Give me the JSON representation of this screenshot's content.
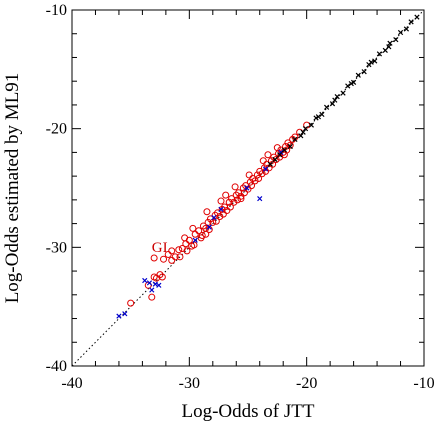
{
  "chart_data": {
    "type": "scatter",
    "xlabel": "Log-Odds of JTT",
    "ylabel": "Log-Odds estimated by ML91",
    "xlim": [
      -40,
      -10
    ],
    "ylim": [
      -40,
      -10
    ],
    "x_ticks": [
      -40,
      -30,
      -20,
      -10
    ],
    "y_ticks": [
      -40,
      -30,
      -20,
      -10
    ],
    "x_tick_labels": [
      "-40",
      "-30",
      "-20",
      "-10"
    ],
    "y_tick_labels": [
      "-40",
      "-30",
      "-20",
      "-10"
    ],
    "grid": false,
    "reference_line": {
      "style": "dotted",
      "from": [
        -40,
        -40
      ],
      "to": [
        -10,
        -10
      ],
      "color": "#000000"
    },
    "annotations": [
      {
        "text": "GI",
        "x": -33.2,
        "y": -30.4,
        "color": "#cc0000"
      }
    ],
    "series": [
      {
        "marker": "circle",
        "color": "#e00000",
        "points": [
          [
            -35.0,
            -34.7
          ],
          [
            -33.5,
            -33.2
          ],
          [
            -33.2,
            -34.2
          ],
          [
            -33.0,
            -32.5
          ],
          [
            -32.8,
            -32.6
          ],
          [
            -32.5,
            -32.3
          ],
          [
            -32.3,
            -32.5
          ],
          [
            -33.0,
            -30.9
          ],
          [
            -32.2,
            -31.0
          ],
          [
            -31.8,
            -30.6
          ],
          [
            -31.5,
            -30.3
          ],
          [
            -31.2,
            -30.8
          ],
          [
            -30.9,
            -30.2
          ],
          [
            -30.6,
            -30.1
          ],
          [
            -30.3,
            -29.7
          ],
          [
            -30.0,
            -29.4
          ],
          [
            -29.8,
            -29.9
          ],
          [
            -29.5,
            -28.9
          ],
          [
            -29.2,
            -28.6
          ],
          [
            -29.0,
            -29.2
          ],
          [
            -28.8,
            -28.2
          ],
          [
            -28.6,
            -28.4
          ],
          [
            -28.4,
            -27.9
          ],
          [
            -28.2,
            -27.6
          ],
          [
            -28.0,
            -27.9
          ],
          [
            -27.8,
            -27.3
          ],
          [
            -27.6,
            -27.1
          ],
          [
            -27.4,
            -27.4
          ],
          [
            -27.2,
            -26.8
          ],
          [
            -27.0,
            -26.6
          ],
          [
            -26.8,
            -26.9
          ],
          [
            -26.6,
            -26.2
          ],
          [
            -26.4,
            -25.9
          ],
          [
            -26.2,
            -26.2
          ],
          [
            -26.0,
            -25.6
          ],
          [
            -25.8,
            -25.4
          ],
          [
            -25.6,
            -25.7
          ],
          [
            -25.4,
            -25.0
          ],
          [
            -25.2,
            -24.8
          ],
          [
            -25.0,
            -25.1
          ],
          [
            -24.8,
            -24.5
          ],
          [
            -24.6,
            -24.2
          ],
          [
            -24.4,
            -24.4
          ],
          [
            -24.2,
            -23.9
          ],
          [
            -24.0,
            -23.6
          ],
          [
            -23.8,
            -23.8
          ],
          [
            -23.6,
            -23.3
          ],
          [
            -23.4,
            -23.0
          ],
          [
            -23.2,
            -23.3
          ],
          [
            -23.0,
            -22.7
          ],
          [
            -22.8,
            -22.4
          ],
          [
            -22.6,
            -22.6
          ],
          [
            -22.4,
            -22.1
          ],
          [
            -22.2,
            -21.8
          ],
          [
            -22.0,
            -22.0
          ],
          [
            -21.8,
            -21.5
          ],
          [
            -21.6,
            -21.2
          ],
          [
            -21.4,
            -21.4
          ],
          [
            -21.2,
            -20.9
          ],
          [
            -21.0,
            -20.7
          ],
          [
            -20.6,
            -20.3
          ],
          [
            -20.0,
            -19.7
          ],
          [
            -31.5,
            -31.1
          ],
          [
            -30.8,
            -30.8
          ],
          [
            -30.2,
            -30.3
          ],
          [
            -29.6,
            -29.8
          ],
          [
            -28.9,
            -29.0
          ],
          [
            -28.3,
            -28.5
          ],
          [
            -27.7,
            -27.8
          ],
          [
            -27.1,
            -27.2
          ],
          [
            -26.5,
            -26.6
          ],
          [
            -25.9,
            -26.0
          ],
          [
            -25.3,
            -25.4
          ],
          [
            -24.7,
            -24.8
          ],
          [
            -24.1,
            -24.2
          ],
          [
            -23.5,
            -23.6
          ],
          [
            -22.9,
            -23.0
          ],
          [
            -22.3,
            -22.4
          ],
          [
            -21.7,
            -21.8
          ],
          [
            -29.7,
            -28.4
          ],
          [
            -28.5,
            -27.0
          ],
          [
            -27.3,
            -26.1
          ],
          [
            -26.1,
            -24.9
          ],
          [
            -24.9,
            -23.9
          ],
          [
            -23.7,
            -22.7
          ],
          [
            -22.5,
            -21.6
          ],
          [
            -30.4,
            -29.2
          ],
          [
            -26.9,
            -25.6
          ],
          [
            -23.3,
            -22.2
          ],
          [
            -28.6,
            -28.9
          ],
          [
            -25.6,
            -25.9
          ],
          [
            -21.9,
            -22.2
          ]
        ]
      },
      {
        "marker": "x",
        "color": "#0000cc",
        "points": [
          [
            -36.0,
            -35.8
          ],
          [
            -35.5,
            -35.6
          ],
          [
            -33.8,
            -32.8
          ],
          [
            -33.4,
            -33.0
          ],
          [
            -32.9,
            -33.1
          ],
          [
            -32.6,
            -33.2
          ],
          [
            -29.5,
            -29.4
          ],
          [
            -28.3,
            -28.3
          ],
          [
            -27.9,
            -27.5
          ],
          [
            -27.3,
            -26.8
          ],
          [
            -25.1,
            -25.0
          ],
          [
            -24.0,
            -25.9
          ],
          [
            -23.5,
            -23.4
          ],
          [
            -22.2,
            -22.0
          ],
          [
            -33.2,
            -33.6
          ]
        ]
      },
      {
        "marker": "x",
        "color": "#000000",
        "points": [
          [
            -10.6,
            -10.6
          ],
          [
            -11.1,
            -11.0
          ],
          [
            -11.5,
            -11.6
          ],
          [
            -12.0,
            -11.9
          ],
          [
            -12.4,
            -12.5
          ],
          [
            -12.9,
            -12.8
          ],
          [
            -13.3,
            -13.4
          ],
          [
            -13.8,
            -13.7
          ],
          [
            -14.2,
            -14.3
          ],
          [
            -14.7,
            -14.6
          ],
          [
            -15.1,
            -15.2
          ],
          [
            -15.6,
            -15.5
          ],
          [
            -16.0,
            -16.1
          ],
          [
            -16.5,
            -16.4
          ],
          [
            -16.9,
            -17.0
          ],
          [
            -17.4,
            -17.3
          ],
          [
            -17.8,
            -17.9
          ],
          [
            -18.3,
            -18.2
          ],
          [
            -18.7,
            -18.8
          ],
          [
            -19.2,
            -19.1
          ],
          [
            -19.6,
            -19.7
          ],
          [
            -20.1,
            -20.0
          ],
          [
            -20.5,
            -20.6
          ],
          [
            -21.0,
            -20.9
          ],
          [
            -21.4,
            -21.5
          ],
          [
            -21.9,
            -21.8
          ],
          [
            -22.3,
            -22.2
          ],
          [
            -22.7,
            -22.6
          ],
          [
            -23.1,
            -23.0
          ],
          [
            -13.0,
            -13.1
          ],
          [
            -14.5,
            -14.4
          ],
          [
            -16.2,
            -16.2
          ],
          [
            -17.6,
            -17.6
          ],
          [
            -19.0,
            -19.0
          ],
          [
            -20.3,
            -20.3
          ]
        ]
      }
    ]
  }
}
